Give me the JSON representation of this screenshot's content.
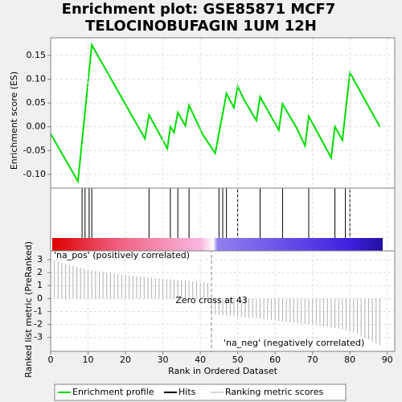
{
  "chart_data": [
    {
      "type": "line",
      "title": [
        "Enrichment plot: GSE85871 MCF7",
        "TELOCINOBUFAGIN 1UM 12H"
      ],
      "ylabel": "Enrichment score (ES)",
      "color": "#00dd00",
      "grid": true,
      "xlim": [
        0,
        92
      ],
      "ylim": [
        -0.129,
        0.187
      ],
      "yticks": [
        0.15,
        {
          "value": 0.1,
          "label": "0.10"
        },
        0.05,
        {
          "value": 0,
          "label": "0.00"
        },
        -0.05,
        {
          "value": -0.1,
          "label": "-0.10"
        }
      ],
      "series": [
        {
          "name": "Enrichment profile",
          "x": [
            0,
            7.3,
            11,
            25.2,
            26.3,
            31.2,
            32,
            33,
            34,
            36,
            37,
            40.7,
            44,
            47,
            49,
            50,
            51.7,
            55,
            56,
            61,
            62,
            65.8,
            68,
            69,
            75,
            76,
            78,
            80,
            83,
            88
          ],
          "values": [
            -0.015,
            -0.115,
            0.172,
            -0.025,
            0.025,
            -0.046,
            0,
            -0.012,
            0.03,
            0.002,
            0.045,
            -0.017,
            -0.056,
            0.07,
            0.04,
            0.085,
            0.057,
            0.013,
            0.063,
            -0.007,
            0.048,
            -0.003,
            -0.04,
            0.022,
            -0.065,
            0,
            -0.028,
            0.114,
            0.071,
            0
          ]
        }
      ]
    },
    {
      "type": "hits",
      "name": "Hits",
      "color": "#000000",
      "xlim": [
        0,
        92
      ],
      "x": [
        8.4,
        9.2,
        10.3,
        11,
        26.3,
        32,
        34,
        37,
        45,
        46,
        47,
        50,
        56,
        62,
        69,
        76,
        78.8,
        80
      ]
    },
    {
      "type": "bar",
      "ylabel": "Ranked list metric (PreRanked)",
      "xlabel": "Rank in Ordered Dataset",
      "name": "Ranking metric scores",
      "color": "#b0b0b0",
      "grid": true,
      "xlim": [
        0,
        92
      ],
      "ylim": [
        -4.07,
        3.68
      ],
      "xticks": [
        0,
        10,
        20,
        30,
        40,
        50,
        60,
        70,
        80,
        90
      ],
      "yticks": [
        3,
        2,
        1,
        0,
        -1,
        -2,
        -3
      ],
      "zero_cross": 43,
      "annotations": [
        "'na_pos' (positively correlated)",
        "'na_neg' (negatively correlated)",
        "Zero cross at 43"
      ],
      "x": [
        0,
        1,
        2,
        3,
        4,
        5,
        6,
        7,
        8,
        9,
        10,
        11,
        12,
        13,
        14,
        15,
        16,
        17,
        18,
        19,
        20,
        21,
        22,
        23,
        24,
        25,
        26,
        27,
        28,
        29,
        30,
        31,
        32,
        33,
        34,
        35,
        36,
        37,
        38,
        39,
        40,
        41,
        42,
        43,
        44,
        45,
        46,
        47,
        48,
        49,
        50,
        51,
        52,
        53,
        54,
        55,
        56,
        57,
        58,
        59,
        60,
        61,
        62,
        63,
        64,
        65,
        66,
        67,
        68,
        69,
        70,
        71,
        72,
        73,
        74,
        75,
        76,
        77,
        78,
        79,
        80,
        81,
        82,
        83,
        84,
        85,
        86,
        87,
        88
      ],
      "values": [
        3.1,
        2.95,
        2.85,
        2.75,
        2.68,
        2.6,
        2.52,
        2.45,
        2.38,
        2.3,
        2.22,
        2.18,
        2.14,
        2.1,
        2.06,
        2.02,
        1.98,
        1.94,
        1.9,
        1.86,
        1.82,
        1.79,
        1.76,
        1.73,
        1.7,
        1.67,
        1.64,
        1.61,
        1.58,
        1.55,
        1.52,
        1.5,
        1.48,
        1.46,
        1.44,
        1.42,
        1.4,
        1.37,
        1.34,
        1.31,
        1.28,
        1.25,
        1.2,
        -1.2,
        -1.22,
        -1.25,
        -1.28,
        -1.3,
        -1.33,
        -1.36,
        -1.39,
        -1.42,
        -1.45,
        -1.48,
        -1.5,
        -1.53,
        -1.56,
        -1.6,
        -1.63,
        -1.66,
        -1.7,
        -1.73,
        -1.76,
        -1.8,
        -1.83,
        -1.86,
        -1.9,
        -1.93,
        -1.96,
        -2.0,
        -2.03,
        -2.06,
        -2.1,
        -2.14,
        -2.18,
        -2.22,
        -2.27,
        -2.32,
        -2.38,
        -2.45,
        -2.53,
        -2.62,
        -2.72,
        -2.85,
        -3.0,
        -3.15,
        -3.3,
        -3.45,
        -3.6
      ]
    }
  ]
}
